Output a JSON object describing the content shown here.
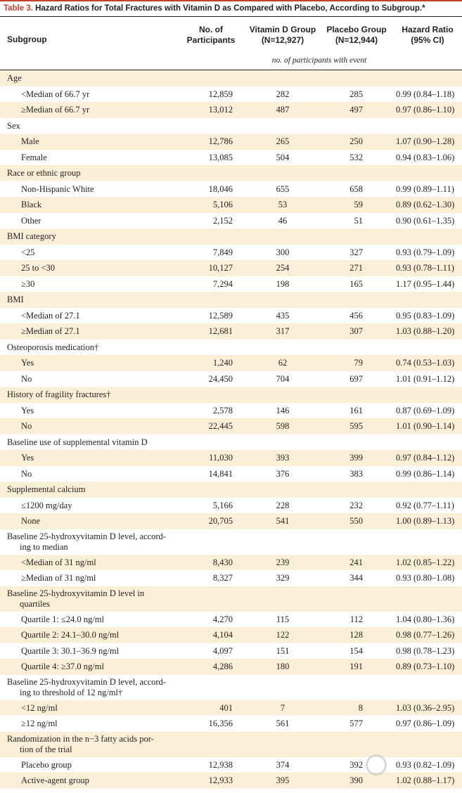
{
  "table": {
    "label": "Table 3.",
    "title": " Hazard Ratios for Total Fractures with Vitamin D as Compared with Placebo, According to Subgroup.*"
  },
  "header": {
    "subgroup": "Subgroup",
    "participants_l1": "No. of",
    "participants_l2": "Participants",
    "vitd_l1": "Vitamin D Group",
    "vitd_l2": "(N=12,927)",
    "placebo_l1": "Placebo Group",
    "placebo_l2": "(N=12,944)",
    "hr_l1": "Hazard Ratio",
    "hr_l2": "(95% CI)",
    "note": "no. of participants with event"
  },
  "rows": [
    {
      "label": "Age"
    },
    {
      "label": "<Median of 66.7 yr",
      "n": "12,859",
      "vd": "282",
      "pl": "285",
      "hr": "0.99 (0.84–1.18)"
    },
    {
      "label": "≥Median of 66.7 yr",
      "n": "13,012",
      "vd": "487",
      "pl": "497",
      "hr": "0.97 (0.86–1.10)"
    },
    {
      "label": "Sex"
    },
    {
      "label": "Male",
      "n": "12,786",
      "vd": "265",
      "pl": "250",
      "hr": "1.07 (0.90–1.28)"
    },
    {
      "label": "Female",
      "n": "13,085",
      "vd": "504",
      "pl": "532",
      "hr": "0.94 (0.83–1.06)"
    },
    {
      "label": "Race or ethnic group"
    },
    {
      "label": "Non-Hispanic White",
      "n": "18,046",
      "vd": "655",
      "pl": "658",
      "hr": "0.99 (0.89–1.11)"
    },
    {
      "label": "Black",
      "n": "5,106",
      "vd": "53",
      "pl": "59",
      "hr": "0.89 (0.62–1.30)"
    },
    {
      "label": "Other",
      "n": "2,152",
      "vd": "46",
      "pl": "51",
      "hr": "0.90 (0.61–1.35)"
    },
    {
      "label": "BMI category"
    },
    {
      "label": "<25",
      "n": "7,849",
      "vd": "300",
      "pl": "327",
      "hr": "0.93 (0.79–1.09)"
    },
    {
      "label": "25 to <30",
      "n": "10,127",
      "vd": "254",
      "pl": "271",
      "hr": "0.93 (0.78–1.11)"
    },
    {
      "label": "≥30",
      "n": "7,294",
      "vd": "198",
      "pl": "165",
      "hr": "1.17 (0.95–1.44)"
    },
    {
      "label": "BMI"
    },
    {
      "label": "<Median of 27.1",
      "n": "12,589",
      "vd": "435",
      "pl": "456",
      "hr": "0.95 (0.83–1.09)"
    },
    {
      "label": "≥Median of 27.1",
      "n": "12,681",
      "vd": "317",
      "pl": "307",
      "hr": "1.03 (0.88–1.20)"
    },
    {
      "label": "Osteoporosis medication†"
    },
    {
      "label": "Yes",
      "n": "1,240",
      "vd": "62",
      "pl": "79",
      "hr": "0.74 (0.53–1.03)"
    },
    {
      "label": "No",
      "n": "24,450",
      "vd": "704",
      "pl": "697",
      "hr": "1.01 (0.91–1.12)"
    },
    {
      "label": "History of fragility fractures†"
    },
    {
      "label": "Yes",
      "n": "2,578",
      "vd": "146",
      "pl": "161",
      "hr": "0.87 (0.69–1.09)"
    },
    {
      "label": "No",
      "n": "22,445",
      "vd": "598",
      "pl": "595",
      "hr": "1.01 (0.90–1.14)"
    },
    {
      "label": "Baseline use of supplemental vitamin D"
    },
    {
      "label": "Yes",
      "n": "11,030",
      "vd": "393",
      "pl": "399",
      "hr": "0.97 (0.84–1.12)"
    },
    {
      "label": "No",
      "n": "14,841",
      "vd": "376",
      "pl": "383",
      "hr": "0.99 (0.86–1.14)"
    },
    {
      "label": "Supplemental calcium"
    },
    {
      "label": "≤1200 mg/day",
      "n": "5,166",
      "vd": "228",
      "pl": "232",
      "hr": "0.92 (0.77–1.11)"
    },
    {
      "label": "None",
      "n": "20,705",
      "vd": "541",
      "pl": "550",
      "hr": "1.00 (0.89–1.13)"
    },
    {
      "label": "Baseline 25-hydroxyvitamin D level, accord-",
      "label2": "ing to median"
    },
    {
      "label": "<Median of 31 ng/ml",
      "n": "8,430",
      "vd": "239",
      "pl": "241",
      "hr": "1.02 (0.85–1.22)"
    },
    {
      "label": "≥Median of 31 ng/ml",
      "n": "8,327",
      "vd": "329",
      "pl": "344",
      "hr": "0.93 (0.80–1.08)"
    },
    {
      "label": "Baseline 25-hydroxyvitamin D level in",
      "label2": "quartiles"
    },
    {
      "label": "Quartile 1: ≤24.0 ng/ml",
      "n": "4,270",
      "vd": "115",
      "pl": "112",
      "hr": "1.04 (0.80–1.36)"
    },
    {
      "label": "Quartile 2: 24.1–30.0 ng/ml",
      "n": "4,104",
      "vd": "122",
      "pl": "128",
      "hr": "0.98 (0.77–1.26)"
    },
    {
      "label": "Quartile 3: 30.1–36.9 ng/ml",
      "n": "4,097",
      "vd": "151",
      "pl": "154",
      "hr": "0.98 (0.78–1.23)"
    },
    {
      "label": "Quartile 4: ≥37.0 ng/ml",
      "n": "4,286",
      "vd": "180",
      "pl": "191",
      "hr": "0.89 (0.73–1.10)"
    },
    {
      "label": "Baseline 25-hydroxyvitamin D level, accord-",
      "label2": "ing to threshold of 12 ng/ml†"
    },
    {
      "label": "<12 ng/ml",
      "n": "401",
      "vd": "7",
      "pl": "8",
      "hr": "1.03 (0.36–2.95)"
    },
    {
      "label": "≥12 ng/ml",
      "n": "16,356",
      "vd": "561",
      "pl": "577",
      "hr": "0.97 (0.86–1.09)"
    },
    {
      "label": "Randomization in the n−3 fatty acids por-",
      "label2": "tion of the trial"
    },
    {
      "label": "Placebo group",
      "n": "12,938",
      "vd": "374",
      "pl": "392",
      "hr": "0.93 (0.82–1.09)"
    },
    {
      "label": "Active-agent group",
      "n": "12,933",
      "vd": "395",
      "pl": "390",
      "hr": "1.02 (0.88–1.17)"
    }
  ],
  "colors": {
    "accent": "#c8402a",
    "cream": "#fcefd8"
  }
}
